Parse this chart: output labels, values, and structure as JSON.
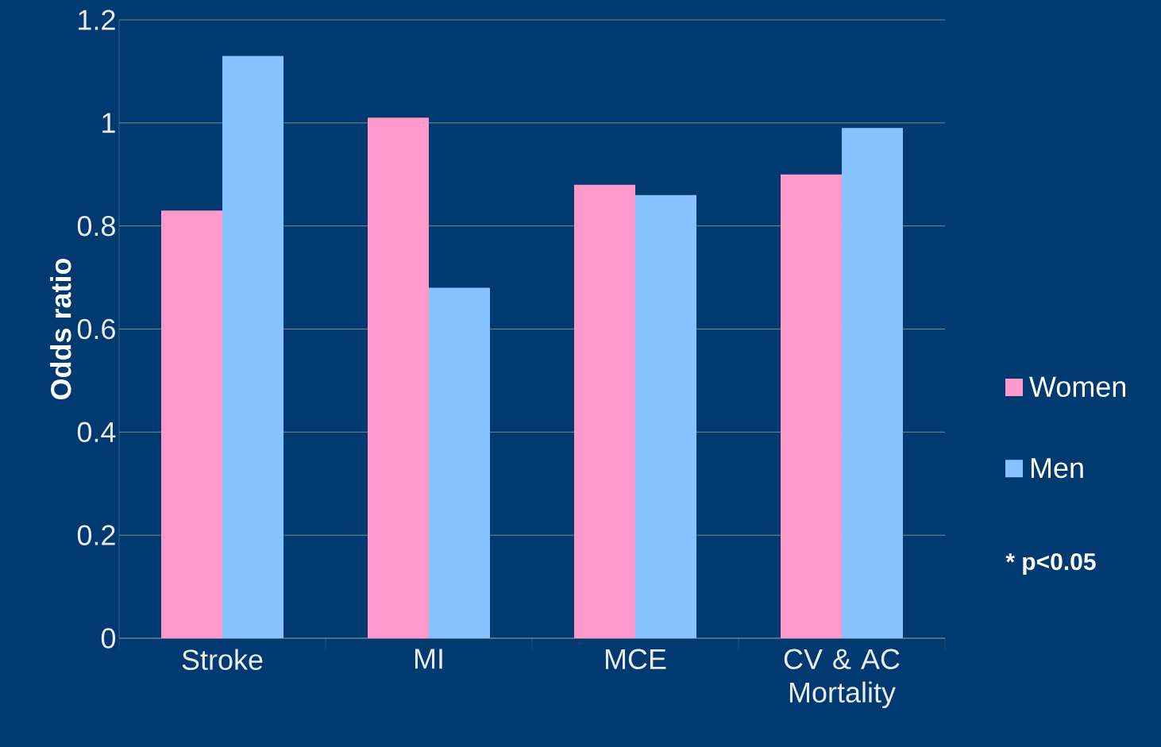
{
  "chart_data": {
    "type": "bar",
    "categories": [
      "Stroke",
      "MI",
      "MCE",
      "CV & AC Mortality"
    ],
    "series": [
      {
        "name": "Women",
        "color": "#ff99cc",
        "values": [
          0.83,
          1.01,
          0.88,
          0.9
        ]
      },
      {
        "name": "Men",
        "color": "#87c3ff",
        "values": [
          1.13,
          0.68,
          0.86,
          0.99
        ]
      }
    ],
    "ylabel": "Odds ratio",
    "ylim": [
      0,
      1.2
    ],
    "yticks": [
      0,
      0.2,
      0.4,
      0.6,
      0.8,
      1,
      1.2
    ],
    "grid": "y",
    "legend": "right",
    "annotations": [
      "* p<0.05"
    ]
  }
}
